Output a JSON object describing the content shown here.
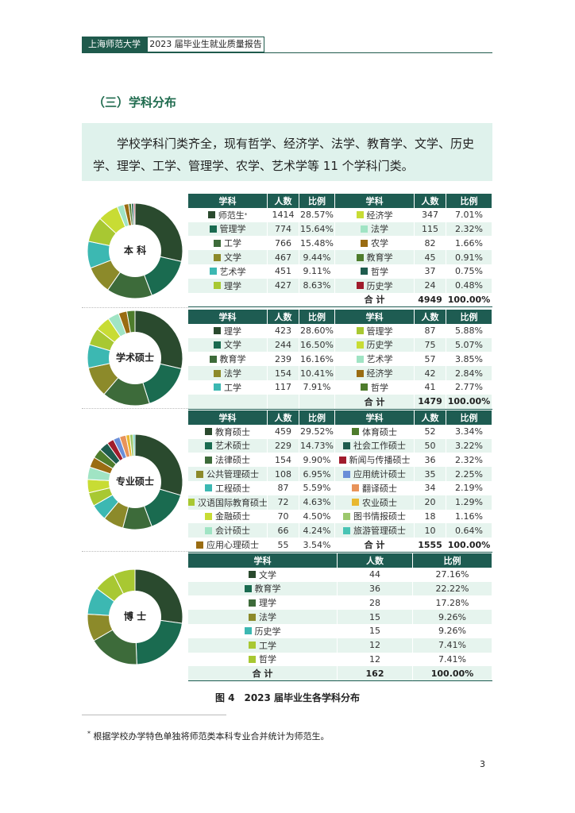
{
  "header": {
    "left": "上海师范大学",
    "right": "2023 届毕业生就业质量报告"
  },
  "section_title": "（三）学科分布",
  "intro": "学校学科门类齐全，现有哲学、经济学、法学、教育学、文学、历史学、理学、工学、管理学、农学、艺术学等 11 个学科门类。",
  "groups": [
    {
      "label": "本 科",
      "header": [
        "学科",
        "人数",
        "比例",
        "学科",
        "人数",
        "比例"
      ],
      "items": [
        {
          "name": "师范生",
          "note": "*",
          "count": 1414,
          "pct": "28.57%",
          "color": "#2a4a2e"
        },
        {
          "name": "管理学",
          "count": 774,
          "pct": "15.64%",
          "color": "#1a6b50"
        },
        {
          "name": "工学",
          "count": 766,
          "pct": "15.48%",
          "color": "#3d6b3a"
        },
        {
          "name": "文学",
          "count": 467,
          "pct": "9.44%",
          "color": "#8c8a2a"
        },
        {
          "name": "艺术学",
          "count": 451,
          "pct": "9.11%",
          "color": "#3cb8b2"
        },
        {
          "name": "理学",
          "count": 427,
          "pct": "8.63%",
          "color": "#a8c832"
        },
        {
          "name": "经济学",
          "count": 347,
          "pct": "7.01%",
          "color": "#c8dc34"
        },
        {
          "name": "法学",
          "count": 115,
          "pct": "2.32%",
          "color": "#a0e4c4"
        },
        {
          "name": "农学",
          "count": 82,
          "pct": "1.66%",
          "color": "#9a6c12"
        },
        {
          "name": "教育学",
          "count": 45,
          "pct": "0.91%",
          "color": "#4e7c2c"
        },
        {
          "name": "哲学",
          "count": 37,
          "pct": "0.75%",
          "color": "#1e5c4e"
        },
        {
          "name": "历史学",
          "count": 24,
          "pct": "0.48%",
          "color": "#a01c2c"
        }
      ],
      "total": {
        "label": "合 计",
        "count": 4949,
        "pct": "100.00%"
      }
    },
    {
      "label": "学术硕士",
      "header": [
        "学科",
        "人数",
        "比例",
        "学科",
        "人数",
        "比例"
      ],
      "items": [
        {
          "name": "理学",
          "count": 423,
          "pct": "28.60%",
          "color": "#2a4a2e"
        },
        {
          "name": "文学",
          "count": 244,
          "pct": "16.50%",
          "color": "#1a6b50"
        },
        {
          "name": "教育学",
          "count": 239,
          "pct": "16.16%",
          "color": "#3d6b3a"
        },
        {
          "name": "法学",
          "count": 154,
          "pct": "10.41%",
          "color": "#8c8a2a"
        },
        {
          "name": "工学",
          "count": 117,
          "pct": "7.91%",
          "color": "#3cb8b2"
        },
        {
          "name": "管理学",
          "count": 87,
          "pct": "5.88%",
          "color": "#a8c832"
        },
        {
          "name": "历史学",
          "count": 75,
          "pct": "5.07%",
          "color": "#c8dc34"
        },
        {
          "name": "艺术学",
          "count": 57,
          "pct": "3.85%",
          "color": "#a0e4c4"
        },
        {
          "name": "经济学",
          "count": 42,
          "pct": "2.84%",
          "color": "#9a6c12"
        },
        {
          "name": "哲学",
          "count": 41,
          "pct": "2.77%",
          "color": "#4e7c2c"
        }
      ],
      "total": {
        "label": "合 计",
        "count": 1479,
        "pct": "100.00%"
      }
    },
    {
      "label": "专业硕士",
      "header": [
        "学科",
        "人数",
        "比例",
        "学科",
        "人数",
        "比例"
      ],
      "items": [
        {
          "name": "教育硕士",
          "count": 459,
          "pct": "29.52%",
          "color": "#2a4a2e"
        },
        {
          "name": "艺术硕士",
          "count": 229,
          "pct": "14.73%",
          "color": "#1a6b50"
        },
        {
          "name": "法律硕士",
          "count": 154,
          "pct": "9.90%",
          "color": "#3d6b3a"
        },
        {
          "name": "公共管理硕士",
          "count": 108,
          "pct": "6.95%",
          "color": "#8c8a2a"
        },
        {
          "name": "工程硕士",
          "count": 87,
          "pct": "5.59%",
          "color": "#3cb8b2"
        },
        {
          "name": "汉语国际教育硕士",
          "count": 72,
          "pct": "4.63%",
          "color": "#a8c832"
        },
        {
          "name": "金融硕士",
          "count": 70,
          "pct": "4.50%",
          "color": "#c8dc34"
        },
        {
          "name": "会计硕士",
          "count": 66,
          "pct": "4.24%",
          "color": "#a0e4c4"
        },
        {
          "name": "应用心理硕士",
          "count": 55,
          "pct": "3.54%",
          "color": "#9a6c12"
        },
        {
          "name": "体育硕士",
          "count": 52,
          "pct": "3.34%",
          "color": "#4e7c2c"
        },
        {
          "name": "社会工作硕士",
          "count": 50,
          "pct": "3.22%",
          "color": "#1e5c4e"
        },
        {
          "name": "新闻与传播硕士",
          "count": 36,
          "pct": "2.32%",
          "color": "#a01c2c"
        },
        {
          "name": "应用统计硕士",
          "count": 35,
          "pct": "2.25%",
          "color": "#6a8ed8"
        },
        {
          "name": "翻译硕士",
          "count": 34,
          "pct": "2.19%",
          "color": "#e8935a"
        },
        {
          "name": "农业硕士",
          "count": 20,
          "pct": "1.29%",
          "color": "#e8b830"
        },
        {
          "name": "图书情报硕士",
          "count": 18,
          "pct": "1.16%",
          "color": "#9cc86c"
        },
        {
          "name": "旅游管理硕士",
          "count": 10,
          "pct": "0.64%",
          "color": "#48c4b4"
        }
      ],
      "total": {
        "label": "合 计",
        "count": 1555,
        "pct": "100.00%"
      }
    },
    {
      "label": "博 士",
      "header": [
        "学科",
        "人数",
        "比例"
      ],
      "items": [
        {
          "name": "文学",
          "count": 44,
          "pct": "27.16%",
          "color": "#2a4a2e"
        },
        {
          "name": "教育学",
          "count": 36,
          "pct": "22.22%",
          "color": "#1a6b50"
        },
        {
          "name": "理学",
          "count": 28,
          "pct": "17.28%",
          "color": "#3d6b3a"
        },
        {
          "name": "法学",
          "count": 15,
          "pct": "9.26%",
          "color": "#8c8a2a"
        },
        {
          "name": "历史学",
          "count": 15,
          "pct": "9.26%",
          "color": "#3cb8b2"
        },
        {
          "name": "工学",
          "count": 12,
          "pct": "7.41%",
          "color": "#a8c832"
        },
        {
          "name": "哲学",
          "count": 12,
          "pct": "7.41%",
          "color": "#a8c832"
        }
      ],
      "total": {
        "label": "合 计",
        "count": 162,
        "pct": "100.00%"
      }
    }
  ],
  "figure_caption": "图 4　2023 届毕业生各学科分布",
  "footnote": {
    "mark": "*",
    "text": "根据学校办学特色单独将师范类本科专业合并统计为师范生。"
  },
  "page_number": "3"
}
